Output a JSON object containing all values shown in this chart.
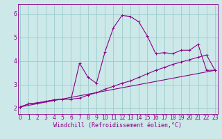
{
  "xlabel": "Windchill (Refroidissement éolien,°C)",
  "bg_color": "#cce8e8",
  "line_color": "#880088",
  "grid_color": "#99cccc",
  "x_ticks": [
    0,
    1,
    2,
    3,
    4,
    5,
    6,
    7,
    8,
    9,
    10,
    11,
    12,
    13,
    14,
    15,
    16,
    17,
    18,
    19,
    20,
    21,
    22,
    23
  ],
  "y_ticks": [
    2,
    3,
    4,
    5,
    6
  ],
  "ylim": [
    1.75,
    6.4
  ],
  "xlim": [
    -0.3,
    23.3
  ],
  "curve1_x": [
    0,
    1,
    2,
    3,
    4,
    5,
    6,
    7,
    8,
    9,
    10,
    11,
    12,
    13,
    14,
    15,
    16,
    17,
    18,
    19,
    20,
    21,
    22,
    23
  ],
  "curve1_y": [
    2.05,
    2.18,
    2.22,
    2.28,
    2.35,
    2.38,
    2.38,
    3.9,
    3.3,
    3.05,
    4.38,
    5.4,
    5.92,
    5.88,
    5.65,
    5.05,
    4.3,
    4.35,
    4.3,
    4.45,
    4.45,
    4.7,
    3.6,
    3.6
  ],
  "curve2_x": [
    0,
    1,
    2,
    3,
    4,
    5,
    6,
    7,
    8,
    9,
    10,
    11,
    12,
    13,
    14,
    15,
    16,
    17,
    18,
    19,
    20,
    21,
    22,
    23
  ],
  "curve2_y": [
    2.05,
    2.18,
    2.22,
    2.28,
    2.35,
    2.38,
    2.38,
    2.42,
    2.55,
    2.65,
    2.8,
    2.92,
    3.05,
    3.15,
    3.3,
    3.45,
    3.6,
    3.72,
    3.85,
    3.95,
    4.05,
    4.15,
    4.25,
    3.6
  ],
  "curve3_x": [
    0,
    23
  ],
  "curve3_y": [
    2.05,
    3.6
  ],
  "tick_fontsize": 5.5,
  "xlabel_fontsize": 6.0,
  "marker_size": 2.5,
  "linewidth": 0.8
}
